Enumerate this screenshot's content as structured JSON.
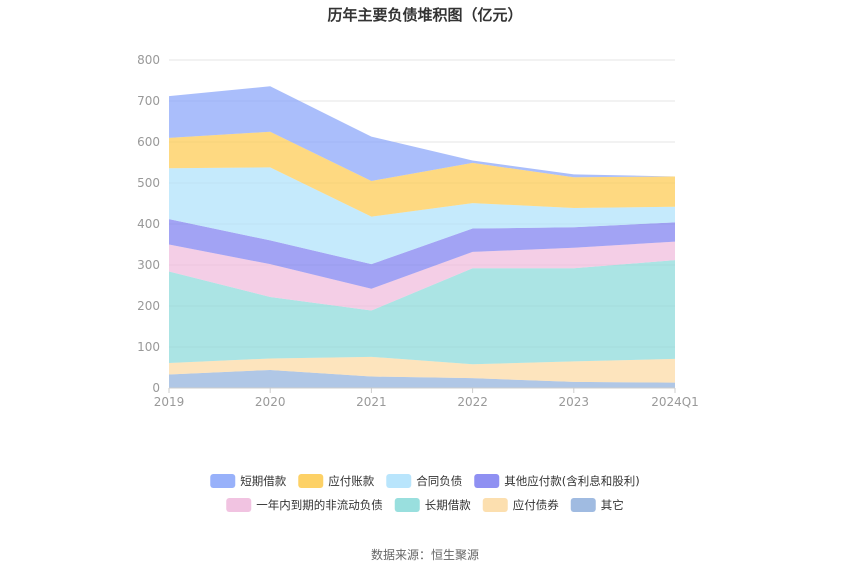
{
  "title": "历年主要负债堆积图（亿元）",
  "source": "数据来源：恒生聚源",
  "chart_data": {
    "type": "area",
    "stacked": true,
    "categories": [
      "2019",
      "2020",
      "2021",
      "2022",
      "2023",
      "2024Q1"
    ],
    "ylim": [
      0,
      800
    ],
    "yticks": [
      0,
      100,
      200,
      300,
      400,
      500,
      600,
      700,
      800
    ],
    "grid": true,
    "legend_position": "bottom",
    "series": [
      {
        "name": "其它",
        "color": "#8fafdc",
        "values": [
          33,
          44,
          28,
          24,
          15,
          13
        ]
      },
      {
        "name": "应付债券",
        "color": "#fcd9a1",
        "values": [
          28,
          28,
          48,
          34,
          50,
          58
        ]
      },
      {
        "name": "长期借款",
        "color": "#87d9d8",
        "values": [
          223,
          150,
          113,
          234,
          227,
          241
        ]
      },
      {
        "name": "一年内到期的非流动负债",
        "color": "#efb9dc",
        "values": [
          66,
          80,
          53,
          40,
          50,
          45
        ]
      },
      {
        "name": "其他应付款(含利息和股利)",
        "color": "#7b7cf0",
        "values": [
          62,
          58,
          60,
          57,
          50,
          47
        ]
      },
      {
        "name": "合同负债",
        "color": "#ade1fb",
        "values": [
          124,
          178,
          116,
          62,
          47,
          38
        ]
      },
      {
        "name": "应付账款",
        "color": "#fdc94b",
        "values": [
          74,
          87,
          87,
          98,
          75,
          74
        ]
      },
      {
        "name": "短期借款",
        "color": "#86a3f9",
        "values": [
          102,
          111,
          108,
          6,
          7,
          0
        ]
      }
    ],
    "legend_rows": [
      [
        "短期借款",
        "应付账款",
        "合同负债",
        "其他应付款(含利息和股利)"
      ],
      [
        "一年内到期的非流动负债",
        "长期借款",
        "应付债券",
        "其它"
      ]
    ]
  }
}
